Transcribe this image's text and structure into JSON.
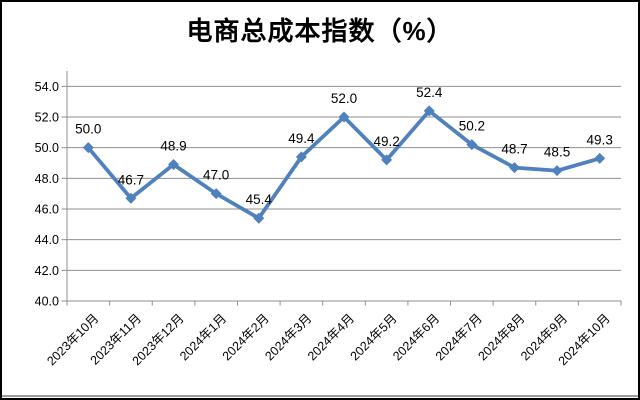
{
  "window": {
    "background": "#ffffff",
    "border_color": "#000000"
  },
  "chart_data": {
    "type": "line",
    "title": "电商总成本指数（%）",
    "categories": [
      "2023年10月",
      "2023年11月",
      "2023年12月",
      "2024年1月",
      "2024年2月",
      "2024年3月",
      "2024年4月",
      "2024年5月",
      "2024年6月",
      "2024年7月",
      "2024年8月",
      "2024年9月",
      "2024年10月"
    ],
    "values": [
      50.0,
      46.7,
      48.9,
      47.0,
      45.4,
      49.4,
      52.0,
      49.2,
      52.4,
      50.2,
      48.7,
      48.5,
      49.3
    ],
    "data_labels": [
      "50.0",
      "46.7",
      "48.9",
      "47.0",
      "45.4",
      "49.4",
      "52.0",
      "49.2",
      "52.4",
      "50.2",
      "48.7",
      "48.5",
      "49.3"
    ],
    "xlabel": "",
    "ylabel": "",
    "ylim": [
      40,
      55
    ],
    "yticks": [
      40,
      42,
      44,
      46,
      48,
      50,
      52,
      54
    ],
    "ytick_labels": [
      "40.0",
      "42.0",
      "44.0",
      "46.0",
      "48.0",
      "50.0",
      "52.0",
      "54.0"
    ],
    "grid": true,
    "legend": "none",
    "line_color": "#4F81BD",
    "marker": "diamond",
    "grid_color": "#8F8F8F",
    "axis_color": "#8F8F8F",
    "text_color": "#000000"
  }
}
